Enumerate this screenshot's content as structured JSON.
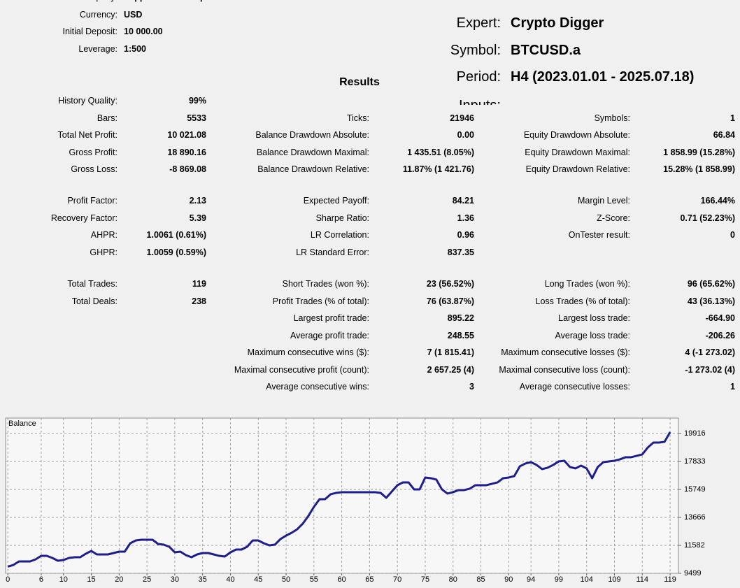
{
  "account": [
    {
      "label": "Company:",
      "value": "Pepperstone Group Limited"
    },
    {
      "label": "Currency:",
      "value": "USD"
    },
    {
      "label": "Initial Deposit:",
      "value": "10 000.00"
    },
    {
      "label": "Leverage:",
      "value": "1:500"
    }
  ],
  "expert": [
    {
      "label": "Expert:",
      "value": "Crypto Digger"
    },
    {
      "label": "Symbol:",
      "value": "BTCUSD.a"
    },
    {
      "label": "Period:",
      "value": "H4 (2023.01.01 - 2025.07.18)"
    },
    {
      "label": "Inputs:",
      "value": "—"
    }
  ],
  "results_title": "Results",
  "results": [
    [
      [
        {
          "label": "History Quality:",
          "value": "99%"
        },
        null,
        null
      ],
      [
        {
          "label": "Bars:",
          "value": "5533"
        },
        {
          "label": "Ticks:",
          "value": "21946"
        },
        {
          "label": "Symbols:",
          "value": "1"
        }
      ],
      [
        {
          "label": "Total Net Profit:",
          "value": "10 021.08"
        },
        {
          "label": "Balance Drawdown Absolute:",
          "value": "0.00"
        },
        {
          "label": "Equity Drawdown Absolute:",
          "value": "66.84"
        }
      ],
      [
        {
          "label": "Gross Profit:",
          "value": "18 890.16"
        },
        {
          "label": "Balance Drawdown Maximal:",
          "value": "1 435.51 (8.05%)"
        },
        {
          "label": "Equity Drawdown Maximal:",
          "value": "1 858.99 (15.28%)"
        }
      ],
      [
        {
          "label": "Gross Loss:",
          "value": "-8 869.08"
        },
        {
          "label": "Balance Drawdown Relative:",
          "value": "11.87% (1 421.76)"
        },
        {
          "label": "Equity Drawdown Relative:",
          "value": "15.28% (1 858.99)"
        }
      ]
    ],
    [
      [
        {
          "label": "Profit Factor:",
          "value": "2.13"
        },
        {
          "label": "Expected Payoff:",
          "value": "84.21"
        },
        {
          "label": "Margin Level:",
          "value": "166.44%"
        }
      ],
      [
        {
          "label": "Recovery Factor:",
          "value": "5.39"
        },
        {
          "label": "Sharpe Ratio:",
          "value": "1.36"
        },
        {
          "label": "Z-Score:",
          "value": "0.71 (52.23%)"
        }
      ],
      [
        {
          "label": "AHPR:",
          "value": "1.0061 (0.61%)"
        },
        {
          "label": "LR Correlation:",
          "value": "0.96"
        },
        {
          "label": "OnTester result:",
          "value": "0"
        }
      ],
      [
        {
          "label": "GHPR:",
          "value": "1.0059 (0.59%)"
        },
        {
          "label": "LR Standard Error:",
          "value": "837.35"
        },
        null
      ]
    ],
    [
      [
        {
          "label": "Total Trades:",
          "value": "119"
        },
        {
          "label": "Short Trades (won %):",
          "value": "23 (56.52%)"
        },
        {
          "label": "Long Trades (won %):",
          "value": "96 (65.62%)"
        }
      ],
      [
        {
          "label": "Total Deals:",
          "value": "238"
        },
        {
          "label": "Profit Trades (% of total):",
          "value": "76 (63.87%)"
        },
        {
          "label": "Loss Trades (% of total):",
          "value": "43 (36.13%)"
        }
      ],
      [
        null,
        {
          "label": "Largest profit trade:",
          "value": "895.22"
        },
        {
          "label": "Largest loss trade:",
          "value": "-664.90"
        }
      ],
      [
        null,
        {
          "label": "Average profit trade:",
          "value": "248.55"
        },
        {
          "label": "Average loss trade:",
          "value": "-206.26"
        }
      ],
      [
        null,
        {
          "label": "Maximum consecutive wins ($):",
          "value": "7 (1 815.41)"
        },
        {
          "label": "Maximum consecutive losses ($):",
          "value": "4 (-1 273.02)"
        }
      ],
      [
        null,
        {
          "label": "Maximal consecutive profit (count):",
          "value": "2 657.25 (4)"
        },
        {
          "label": "Maximal consecutive loss (count):",
          "value": "-1 273.02 (4)"
        }
      ],
      [
        null,
        {
          "label": "Average consecutive wins:",
          "value": "3"
        },
        {
          "label": "Average consecutive losses:",
          "value": "1"
        }
      ]
    ]
  ],
  "chart_data": {
    "type": "line",
    "title": "Balance",
    "x": [
      0,
      1,
      2,
      3,
      4,
      5,
      6,
      7,
      8,
      9,
      10,
      11,
      12,
      13,
      14,
      15,
      16,
      17,
      18,
      19,
      20,
      21,
      22,
      23,
      24,
      25,
      26,
      27,
      28,
      29,
      30,
      31,
      32,
      33,
      34,
      35,
      36,
      37,
      38,
      39,
      40,
      41,
      42,
      43,
      44,
      45,
      46,
      47,
      48,
      49,
      50,
      51,
      52,
      53,
      54,
      55,
      56,
      57,
      58,
      59,
      60,
      61,
      62,
      63,
      64,
      65,
      66,
      67,
      68,
      69,
      70,
      71,
      72,
      73,
      74,
      75,
      76,
      77,
      78,
      79,
      80,
      81,
      82,
      83,
      84,
      85,
      86,
      87,
      88,
      89,
      90,
      91,
      92,
      93,
      94,
      95,
      96,
      97,
      98,
      99,
      100,
      101,
      102,
      103,
      104,
      105,
      106,
      107,
      108,
      109,
      110,
      111,
      112,
      113,
      114,
      115,
      116,
      117,
      118,
      119
    ],
    "series": [
      {
        "color": "#1e1e8c",
        "values": [
          10000,
          10124,
          10385,
          10385,
          10385,
          10540,
          10800,
          10800,
          10645,
          10437,
          10490,
          10645,
          10697,
          10697,
          10958,
          11166,
          10906,
          10906,
          10906,
          11010,
          11114,
          11114,
          11739,
          11947,
          12000,
          12000,
          12000,
          11687,
          11635,
          11479,
          11062,
          11114,
          10854,
          10697,
          10906,
          11010,
          11010,
          10906,
          10800,
          10750,
          11062,
          11270,
          11270,
          11479,
          11947,
          11947,
          11739,
          11583,
          11635,
          12052,
          12312,
          12520,
          12781,
          13198,
          13771,
          14448,
          15022,
          15022,
          15386,
          15490,
          15543,
          15543,
          15543,
          15543,
          15543,
          15543,
          15543,
          15490,
          15126,
          15595,
          16063,
          16272,
          16272,
          15751,
          15751,
          16637,
          16585,
          16481,
          15751,
          15438,
          15543,
          15699,
          15699,
          15803,
          16063,
          16063,
          16063,
          16168,
          16272,
          16585,
          16637,
          16741,
          17470,
          17679,
          17783,
          17575,
          17262,
          17366,
          17575,
          17835,
          17887,
          17418,
          17314,
          17522,
          17314,
          16585,
          17418,
          17783,
          17835,
          17887,
          17991,
          18148,
          18148,
          18252,
          18356,
          18877,
          19241,
          19241,
          19294,
          20021
        ]
      }
    ],
    "xlim": [
      -0.4,
      120.5
    ],
    "xticks": [
      0,
      6,
      10,
      15,
      20,
      25,
      30,
      35,
      40,
      45,
      50,
      55,
      60,
      65,
      70,
      75,
      80,
      85,
      90,
      94,
      99,
      104,
      109,
      114,
      119
    ],
    "ylim": [
      9499,
      21062
    ],
    "yticks": [
      9499,
      11582,
      13666,
      15749,
      17833,
      19916
    ],
    "grid": true
  }
}
